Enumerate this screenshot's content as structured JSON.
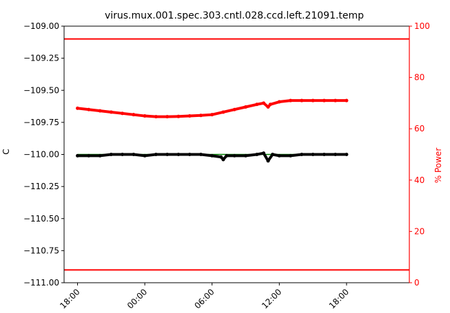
{
  "chart_data": {
    "type": "scatter",
    "title": "virus.mux.001.spec.303.cntl.028.ccd.left.21091.temp",
    "ylabel": "C",
    "ylabel_right": "% Power",
    "ylim": [
      -111.0,
      -109.0
    ],
    "ylim_right": [
      0,
      100
    ],
    "xlim": [
      -1.2,
      29.6
    ],
    "y_ticks": [
      {
        "value": -109.0,
        "label": "−109.00"
      },
      {
        "value": -109.25,
        "label": "−109.25"
      },
      {
        "value": -109.5,
        "label": "−109.50"
      },
      {
        "value": -109.75,
        "label": "−109.75"
      },
      {
        "value": -110.0,
        "label": "−110.00"
      },
      {
        "value": -110.25,
        "label": "−110.25"
      },
      {
        "value": -110.5,
        "label": "−110.50"
      },
      {
        "value": -110.75,
        "label": "−110.75"
      },
      {
        "value": -111.0,
        "label": "−111.00"
      }
    ],
    "y_right_ticks": [
      {
        "value": 100,
        "label": "100"
      },
      {
        "value": 80,
        "label": "80"
      },
      {
        "value": 60,
        "label": "60"
      },
      {
        "value": 40,
        "label": "40"
      },
      {
        "value": 20,
        "label": "20"
      },
      {
        "value": 0,
        "label": "0"
      }
    ],
    "x_ticks": [
      {
        "value": 0,
        "label": "18:00"
      },
      {
        "value": 6,
        "label": "00:00"
      },
      {
        "value": 12,
        "label": "06:00"
      },
      {
        "value": 18,
        "label": "12:00"
      },
      {
        "value": 24,
        "label": "18:00"
      }
    ],
    "hlines_right": [
      {
        "value": 95,
        "color": "#ff0000"
      },
      {
        "value": 5,
        "color": "#ff0000"
      }
    ],
    "series": [
      {
        "color": "#008000",
        "axis": "left",
        "style": "line",
        "x": [
          0,
          24
        ],
        "y": [
          -110.0,
          -110.0
        ]
      },
      {
        "color": "#000000",
        "axis": "left",
        "style": "points",
        "x": [
          0,
          1,
          2,
          3,
          4,
          5,
          6,
          7,
          8,
          9,
          10,
          11,
          12,
          12.8,
          13,
          13.3,
          14,
          15,
          16,
          16.6,
          17,
          17.4,
          18,
          19,
          20,
          21,
          22,
          23,
          24
        ],
        "y": [
          -110.01,
          -110.01,
          -110.01,
          -110.0,
          -110.0,
          -110.0,
          -110.01,
          -110.0,
          -110.0,
          -110.0,
          -110.0,
          -110.0,
          -110.01,
          -110.02,
          -110.04,
          -110.01,
          -110.01,
          -110.01,
          -110.0,
          -109.99,
          -110.05,
          -110.0,
          -110.01,
          -110.01,
          -110.0,
          -110.0,
          -110.0,
          -110.0,
          -110.0
        ]
      },
      {
        "color": "#ff0000",
        "axis": "right",
        "style": "points",
        "x": [
          0,
          1,
          2,
          3,
          4,
          5,
          6,
          7,
          8,
          9,
          10,
          11,
          12,
          13,
          14,
          15,
          16,
          16.6,
          17,
          17.2,
          18,
          19,
          20,
          21,
          22,
          23,
          24
        ],
        "y": [
          68,
          67.5,
          67,
          66.5,
          66,
          65.5,
          65,
          64.7,
          64.7,
          64.8,
          65,
          65.2,
          65.5,
          66.5,
          67.5,
          68.5,
          69.5,
          70,
          68.5,
          69.5,
          70.5,
          71,
          71,
          71,
          71,
          71,
          71
        ]
      }
    ]
  }
}
